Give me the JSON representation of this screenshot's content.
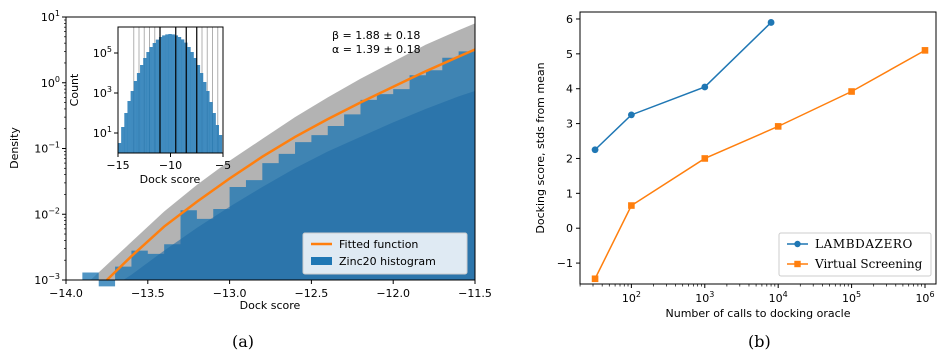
{
  "panels": [
    {
      "caption": "(a)"
    },
    {
      "caption": "(b)"
    }
  ],
  "chart_data": [
    {
      "type": "area",
      "xlabel": "Dock score",
      "ylabel": "Density",
      "xlim": [
        -14.0,
        -11.5
      ],
      "ylim": [
        0.001,
        10
      ],
      "yscale": "log",
      "xticks": [
        "−14.0",
        "−13.5",
        "−13.0",
        "−12.5",
        "−12.0",
        "−11.5"
      ],
      "yticks": [
        {
          "base": "10",
          "exp": "−3"
        },
        {
          "base": "10",
          "exp": "−2"
        },
        {
          "base": "10",
          "exp": "−1"
        },
        {
          "base": "10",
          "exp": "0"
        },
        {
          "base": "10",
          "exp": "1"
        }
      ],
      "annotations": [
        "β = 1.88 ± 0.18",
        "α = 1.39 ± 0.18"
      ],
      "legend_position": "bottom-right",
      "legend": [
        "Fitted function",
        "Zinc20 histogram"
      ],
      "colors": {
        "fit": "#ff7f0e",
        "histogram": "#1f77b4",
        "band": "#9a9a9a"
      },
      "series": [
        {
          "name": "Fitted function",
          "kind": "line",
          "x": [
            -13.75,
            -13.6,
            -13.4,
            -13.2,
            -13.0,
            -12.8,
            -12.6,
            -12.4,
            -12.2,
            -12.0,
            -11.8,
            -11.6,
            -11.5
          ],
          "values": [
            0.001,
            0.0023,
            0.0065,
            0.0155,
            0.035,
            0.075,
            0.15,
            0.28,
            0.5,
            0.87,
            1.5,
            2.5,
            3.2
          ]
        },
        {
          "name": "Zinc20 histogram",
          "kind": "histogram",
          "bin_edges": [
            -13.9,
            -13.8,
            -13.7,
            -13.6,
            -13.5,
            -13.4,
            -13.3,
            -13.2,
            -13.1,
            -13.0,
            -12.9,
            -12.8,
            -12.7,
            -12.6,
            -12.5,
            -12.4,
            -12.3,
            -12.2,
            -12.1,
            -12.0,
            -11.9,
            -11.8,
            -11.7,
            -11.6,
            -11.5
          ],
          "values": [
            0.0013,
            0.0008,
            0.0016,
            0.0028,
            0.0025,
            0.0035,
            0.0115,
            0.0085,
            0.012,
            0.026,
            0.033,
            0.06,
            0.083,
            0.125,
            0.16,
            0.22,
            0.33,
            0.55,
            0.67,
            0.8,
            1.3,
            1.55,
            2.4,
            3.0
          ]
        },
        {
          "name": "fit band upper",
          "kind": "band",
          "x": [
            -13.85,
            -13.6,
            -13.4,
            -13.2,
            -13.0,
            -12.8,
            -12.6,
            -12.4,
            -12.2,
            -12.0,
            -11.8,
            -11.6,
            -11.5
          ],
          "values": [
            0.001,
            0.0038,
            0.011,
            0.028,
            0.065,
            0.14,
            0.3,
            0.6,
            1.15,
            2.1,
            3.8,
            6.3,
            8.0
          ]
        },
        {
          "name": "fit band lower",
          "kind": "band",
          "x": [
            -13.65,
            -13.6,
            -13.4,
            -13.2,
            -13.0,
            -12.8,
            -12.6,
            -12.4,
            -12.2,
            -12.0,
            -11.8,
            -11.6,
            -11.5
          ],
          "values": [
            0.001,
            0.0012,
            0.0028,
            0.0062,
            0.013,
            0.026,
            0.05,
            0.09,
            0.15,
            0.25,
            0.4,
            0.62,
            0.75
          ]
        }
      ],
      "inset": {
        "type": "bar",
        "xlabel": "Dock score",
        "ylabel": "Count",
        "xlim": [
          -15,
          -5
        ],
        "ylim_log10": [
          0,
          6.3
        ],
        "yscale": "log",
        "xticks": [
          "−15",
          "−10",
          "−5"
        ],
        "yticks": [
          {
            "base": "10",
            "exp": "1"
          },
          {
            "base": "10",
            "exp": "3"
          },
          {
            "base": "10",
            "exp": "5"
          }
        ],
        "bin_edges_start": -15.0,
        "bin_width": 0.3,
        "log10_counts": [
          0.5,
          1.3,
          2.0,
          2.6,
          3.1,
          3.6,
          4.0,
          4.4,
          4.75,
          5.05,
          5.3,
          5.5,
          5.67,
          5.8,
          5.88,
          5.93,
          5.95,
          5.93,
          5.88,
          5.8,
          5.68,
          5.52,
          5.3,
          5.05,
          4.75,
          4.4,
          4.0,
          3.55,
          3.1,
          2.55,
          2.0,
          1.4,
          0.9
        ],
        "vertical_lines_gray": [
          -13.5,
          -13.0,
          -12.5,
          -12.0,
          -11.5,
          -7.0,
          -6.5,
          -6.0,
          -5.5
        ],
        "vertical_lines_black": [
          -11.0,
          -9.5,
          -8.5,
          -7.5
        ]
      }
    },
    {
      "type": "line",
      "xlabel": "Number of calls to docking oracle",
      "ylabel": "Docking score, stds from mean",
      "xscale": "log",
      "xlim_log10": [
        1.3,
        6.15
      ],
      "ylim": [
        -1.6,
        6.2
      ],
      "xticks": [
        {
          "base": "10",
          "exp": "2"
        },
        {
          "base": "10",
          "exp": "3"
        },
        {
          "base": "10",
          "exp": "4"
        },
        {
          "base": "10",
          "exp": "5"
        },
        {
          "base": "10",
          "exp": "6"
        }
      ],
      "yticks": [
        "−1",
        "0",
        "1",
        "2",
        "3",
        "4",
        "5",
        "6"
      ],
      "legend_position": "bottom-right",
      "series": [
        {
          "name": "LambdaZero",
          "legend_label": "LAMBDAZERO",
          "marker": "circle",
          "color": "#1f77b4",
          "x": [
            32,
            100,
            1000,
            8000
          ],
          "values": [
            2.25,
            3.25,
            4.05,
            5.9
          ]
        },
        {
          "name": "Virtual Screening",
          "legend_label": "Virtual Screening",
          "marker": "square",
          "color": "#ff7f0e",
          "x": [
            32,
            100,
            1000,
            10000,
            100000,
            1000000
          ],
          "values": [
            -1.45,
            0.65,
            2.0,
            2.92,
            3.92,
            5.1
          ]
        }
      ]
    }
  ]
}
